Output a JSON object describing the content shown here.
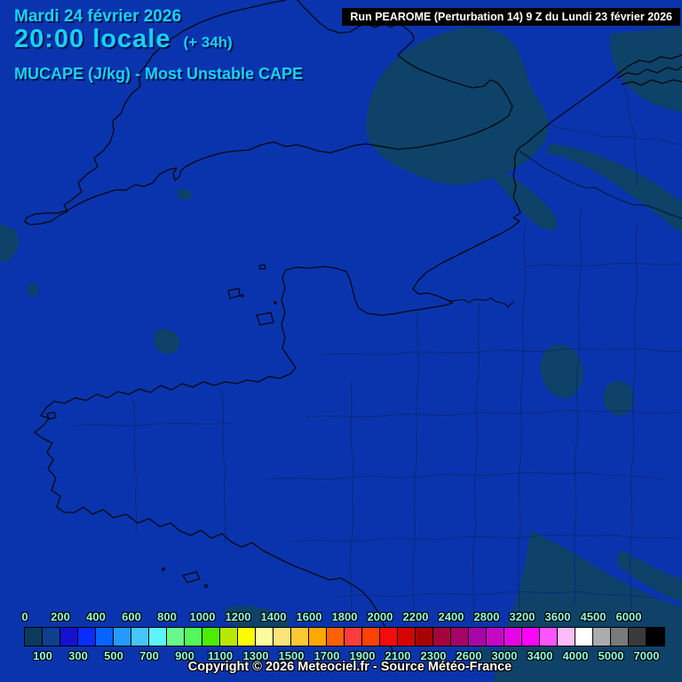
{
  "theme": {
    "background": "#0a34ad",
    "patch": "#0e4268",
    "coast": "#05090f",
    "border": "#0a2a7a",
    "country_border": "#051a45",
    "header_text": "#14d2fc",
    "scale_label": "#8cfce2",
    "runbox_bg": "#000000",
    "runbox_text": "#ffffff",
    "copyright_text": "#ffffff"
  },
  "header": {
    "date_line": "Mardi 24 février 2026",
    "time_line": "20:00 locale",
    "offset_label": "(+ 34h)",
    "param_line": "MUCAPE (J/kg) - Most Unstable CAPE"
  },
  "run_box": {
    "label": "Run PEAROME (Perturbation 14) 9 Z du Lundi 23 février 2026"
  },
  "footer": {
    "copyright": "Copyright © 2026 Meteociel.fr - Source Météo-France"
  },
  "scale": {
    "unit": "J/kg",
    "top_labels": [
      "0",
      "200",
      "400",
      "600",
      "800",
      "1000",
      "1200",
      "1400",
      "1600",
      "1800",
      "2000",
      "2200",
      "2400",
      "2800",
      "3200",
      "3600",
      "4500",
      "6000"
    ],
    "bottom_labels": [
      "100",
      "300",
      "500",
      "700",
      "900",
      "1100",
      "1300",
      "1500",
      "1700",
      "1900",
      "2100",
      "2300",
      "2600",
      "3000",
      "3400",
      "4000",
      "5000",
      "7000"
    ],
    "cells": [
      {
        "from": 0,
        "to": 100,
        "color": "#0c3a5e"
      },
      {
        "from": 100,
        "to": 200,
        "color": "#0d3f8f"
      },
      {
        "from": 200,
        "to": 300,
        "color": "#1510d0"
      },
      {
        "from": 300,
        "to": 400,
        "color": "#0b2cff"
      },
      {
        "from": 400,
        "to": 500,
        "color": "#0764fc"
      },
      {
        "from": 500,
        "to": 600,
        "color": "#239bfc"
      },
      {
        "from": 600,
        "to": 700,
        "color": "#45c5fa"
      },
      {
        "from": 700,
        "to": 800,
        "color": "#5df5fc"
      },
      {
        "from": 800,
        "to": 900,
        "color": "#68f98a"
      },
      {
        "from": 900,
        "to": 1000,
        "color": "#52f75a"
      },
      {
        "from": 1000,
        "to": 1100,
        "color": "#4cec04"
      },
      {
        "from": 1100,
        "to": 1200,
        "color": "#b9e800"
      },
      {
        "from": 1200,
        "to": 1300,
        "color": "#fcfc00"
      },
      {
        "from": 1300,
        "to": 1400,
        "color": "#fcfc9e"
      },
      {
        "from": 1400,
        "to": 1500,
        "color": "#fce37a"
      },
      {
        "from": 1500,
        "to": 1600,
        "color": "#fcc832"
      },
      {
        "from": 1600,
        "to": 1700,
        "color": "#fca800"
      },
      {
        "from": 1700,
        "to": 1800,
        "color": "#fc6202"
      },
      {
        "from": 1800,
        "to": 1900,
        "color": "#fc3b3b"
      },
      {
        "from": 1900,
        "to": 2000,
        "color": "#fc4103"
      },
      {
        "from": 2000,
        "to": 2100,
        "color": "#f40b0b"
      },
      {
        "from": 2100,
        "to": 2200,
        "color": "#d40404"
      },
      {
        "from": 2200,
        "to": 2300,
        "color": "#a80404"
      },
      {
        "from": 2300,
        "to": 2400,
        "color": "#a3043c"
      },
      {
        "from": 2400,
        "to": 2600,
        "color": "#a50468"
      },
      {
        "from": 2600,
        "to": 2800,
        "color": "#a806a8"
      },
      {
        "from": 2800,
        "to": 3000,
        "color": "#c408c4"
      },
      {
        "from": 3000,
        "to": 3200,
        "color": "#e406e4"
      },
      {
        "from": 3200,
        "to": 3400,
        "color": "#fb06fb"
      },
      {
        "from": 3400,
        "to": 3600,
        "color": "#fd55fd"
      },
      {
        "from": 3600,
        "to": 4000,
        "color": "#fcbcfc"
      },
      {
        "from": 4000,
        "to": 4500,
        "color": "#ffffff"
      },
      {
        "from": 4500,
        "to": 5000,
        "color": "#acacac"
      },
      {
        "from": 5000,
        "to": 6000,
        "color": "#7a7a7a"
      },
      {
        "from": 6000,
        "to": 7000,
        "color": "#3a3a3a"
      },
      {
        "from": 7000,
        "to": "max",
        "color": "#000000"
      }
    ]
  }
}
